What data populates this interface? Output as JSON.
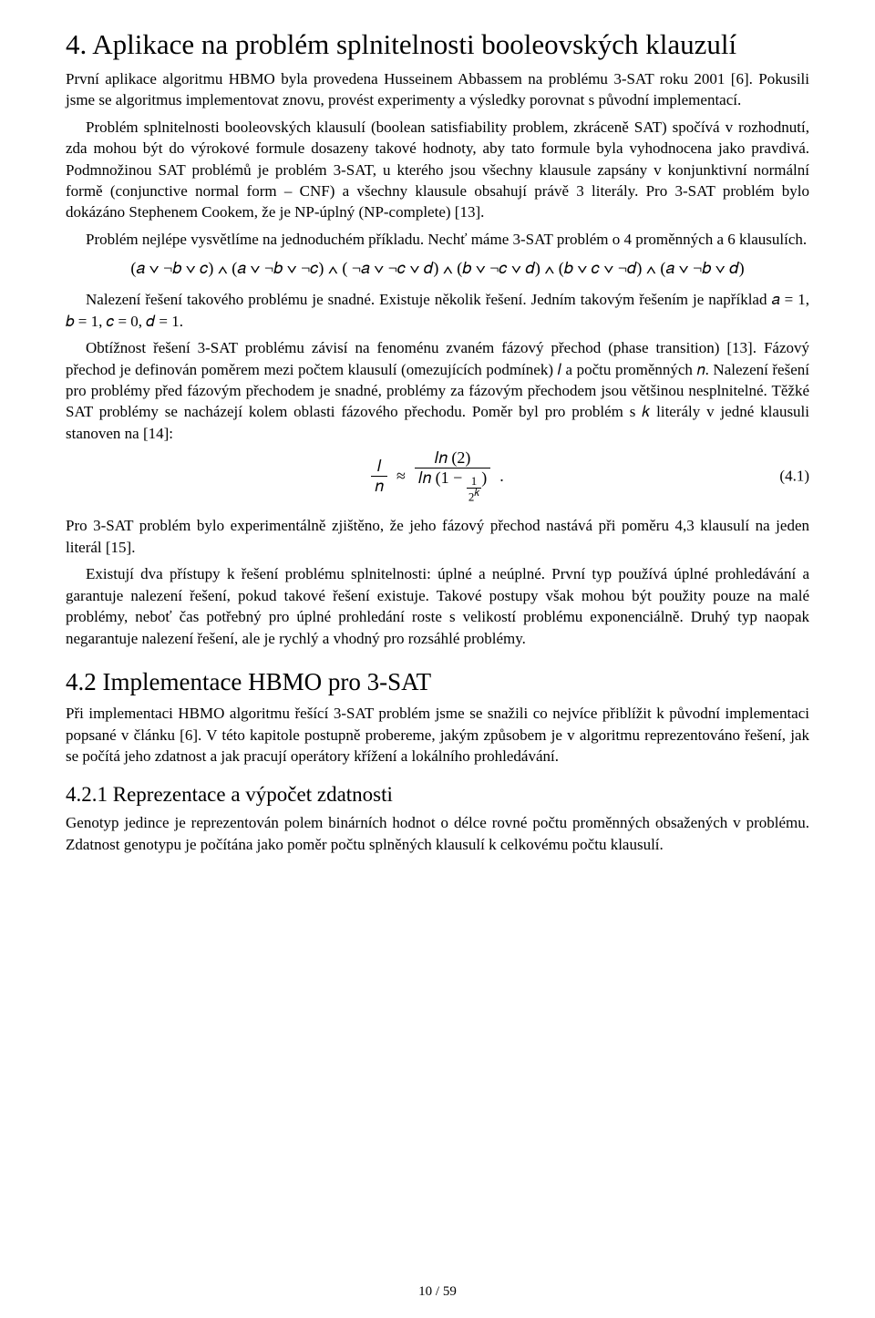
{
  "heading1": "4. Aplikace na problém splnitelnosti booleovských klauzulí",
  "p1": "První aplikace algoritmu HBMO byla provedena Husseinem Abbassem na problému 3-SAT roku 2001 [6]. Pokusili jsme se algoritmus implementovat znovu, provést experimenty a výsledky porovnat s původní implementací.",
  "p2": "Problém splnitelnosti booleovských klausulí (boolean satisfiability problem, zkráceně SAT) spočívá v rozhodnutí, zda mohou být do výrokové formule dosazeny takové hodnoty, aby tato formule byla vyhodnocena jako pravdivá. Podmnožinou SAT problémů je problém 3-SAT, u kterého jsou všechny klausule zapsány v konjunktivní normální formě (conjunctive normal form – CNF) a všechny klausule obsahují právě 3 literály. Pro 3-SAT problém bylo dokázáno Stephenem Cookem, že je NP-úplný (NP-complete) [13].",
  "p3": "Problém nejlépe vysvětlíme na jednoduchém příkladu. Nechť máme 3-SAT problém o 4 proměnných a 6 klausulích.",
  "formula": "(𝑎 ∨ ¬𝑏 ∨ 𝑐) ∧ (𝑎 ∨ ¬𝑏 ∨ ¬𝑐) ∧ ( ¬𝑎 ∨ ¬𝑐 ∨ 𝑑) ∧ (𝑏 ∨ ¬𝑐 ∨ 𝑑) ∧ (𝑏 ∨ 𝑐 ∨ ¬𝑑) ∧ (𝑎 ∨ ¬𝑏 ∨ 𝑑)",
  "p4": "Nalezení řešení takového problému je snadné. Existuje několik řešení. Jedním takovým řešením je například 𝑎 = 1, 𝑏 = 1, 𝑐 = 0, 𝑑 = 1.",
  "p5": "Obtížnost řešení 3-SAT problému závisí na fenoménu zvaném fázový přechod (phase transition) [13]. Fázový přechod je definován poměrem mezi počtem klausulí (omezujících podmínek) 𝑙 a počtu proměnných 𝑛. Nalezení řešení pro problémy před fázovým přechodem je snadné, problémy za fázovým přechodem jsou většinou nesplnitelné. Těžké SAT problémy se nacházejí kolem oblasti fázového přechodu. Poměr byl pro problém s 𝑘 literály v jedné klausuli stanoven na [14]:",
  "eq": {
    "left_num": "𝑙",
    "left_den": "𝑛",
    "approx": "≈",
    "right_num": "𝑙𝑛 (2)",
    "right_den_outer": "𝑙𝑛 (1 − ",
    "right_den_frac_num": "1",
    "right_den_frac_den": "2",
    "right_den_k": "𝑘",
    "right_den_close": ")",
    "period": ".",
    "number": "(4.1)"
  },
  "p6": "Pro 3-SAT problém bylo experimentálně zjištěno, že jeho fázový přechod nastává při poměru 4,3 klausulí na jeden literál [15].",
  "p7": "Existují dva přístupy k řešení problému splnitelnosti: úplné a neúplné. První typ používá úplné prohledávání a garantuje nalezení řešení, pokud takové řešení existuje. Takové postupy však mohou být použity pouze na malé problémy, neboť čas potřebný pro úplné prohledání roste s velikostí problému exponenciálně. Druhý typ naopak negarantuje nalezení řešení, ale je rychlý a vhodný pro rozsáhlé problémy.",
  "heading2": "4.2 Implementace HBMO pro 3-SAT",
  "p8": "Při implementaci HBMO algoritmu řešící 3-SAT problém jsme se snažili co nejvíce přiblížit k původní implementaci popsané v článku [6]. V této kapitole postupně probereme, jakým způsobem je v algoritmu reprezentováno řešení, jak se počítá jeho zdatnost a jak pracují operátory křížení a lokálního prohledávání.",
  "heading3": "4.2.1  Reprezentace a výpočet zdatnosti",
  "p9": "Genotyp jedince je reprezentován polem binárních hodnot o délce rovné počtu proměnných obsažených v problému. Zdatnost genotypu je počítána jako poměr počtu splněných klausulí k celkovému počtu klausulí.",
  "pager": "10 / 59"
}
